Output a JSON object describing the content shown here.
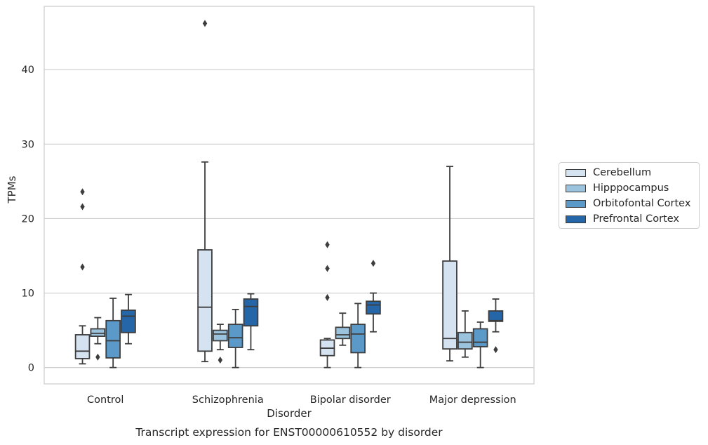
{
  "chart_data": {
    "type": "box",
    "title": "",
    "caption": "Transcript expression for ENST00000610552 by disorder",
    "xlabel": "Disorder",
    "ylabel": "TPMs",
    "ylim": [
      -2.2,
      48.5
    ],
    "yticks": [
      0,
      10,
      20,
      30,
      40
    ],
    "grid": "horizontal",
    "legend_position": "right",
    "categories": [
      "Control",
      "Schizophrenia",
      "Bipolar disorder",
      "Major depression"
    ],
    "series": [
      {
        "name": "Cerebellum",
        "color": "#d5e2f0",
        "boxes": [
          {
            "whisker_low": 0.5,
            "q1": 1.2,
            "median": 2.2,
            "q3": 4.4,
            "whisker_high": 5.6,
            "outliers": [
              13.5,
              21.6,
              23.6
            ]
          },
          {
            "whisker_low": 0.8,
            "q1": 2.2,
            "median": 8.1,
            "q3": 15.8,
            "whisker_high": 27.6,
            "outliers": [
              46.2
            ]
          },
          {
            "whisker_low": 0.0,
            "q1": 1.6,
            "median": 2.6,
            "q3": 3.7,
            "whisker_high": 3.9,
            "outliers": [
              9.4,
              13.3,
              16.5
            ]
          },
          {
            "whisker_low": 0.9,
            "q1": 2.5,
            "median": 3.9,
            "q3": 14.3,
            "whisker_high": 27.0,
            "outliers": []
          }
        ]
      },
      {
        "name": "Hipppocampus",
        "color": "#9cc3de",
        "boxes": [
          {
            "whisker_low": 3.2,
            "q1": 4.2,
            "median": 4.6,
            "q3": 5.2,
            "whisker_high": 6.7,
            "outliers": [
              1.4
            ]
          },
          {
            "whisker_low": 2.4,
            "q1": 3.6,
            "median": 4.5,
            "q3": 5.0,
            "whisker_high": 5.8,
            "outliers": [
              1.0
            ]
          },
          {
            "whisker_low": 3.0,
            "q1": 3.9,
            "median": 4.4,
            "q3": 5.4,
            "whisker_high": 7.3,
            "outliers": []
          },
          {
            "whisker_low": 1.4,
            "q1": 2.5,
            "median": 3.4,
            "q3": 4.7,
            "whisker_high": 7.6,
            "outliers": []
          }
        ]
      },
      {
        "name": "Orbitofontal Cortex",
        "color": "#5b9ac8",
        "boxes": [
          {
            "whisker_low": 0.0,
            "q1": 1.3,
            "median": 3.6,
            "q3": 6.3,
            "whisker_high": 9.3,
            "outliers": []
          },
          {
            "whisker_low": 0.0,
            "q1": 2.7,
            "median": 4.0,
            "q3": 5.8,
            "whisker_high": 7.8,
            "outliers": []
          },
          {
            "whisker_low": 0.0,
            "q1": 2.0,
            "median": 4.5,
            "q3": 5.8,
            "whisker_high": 8.6,
            "outliers": []
          },
          {
            "whisker_low": 0.0,
            "q1": 2.8,
            "median": 3.4,
            "q3": 5.2,
            "whisker_high": 6.1,
            "outliers": []
          }
        ]
      },
      {
        "name": "Prefrontal Cortex",
        "color": "#2566a8",
        "boxes": [
          {
            "whisker_low": 3.2,
            "q1": 4.7,
            "median": 6.9,
            "q3": 7.7,
            "whisker_high": 9.8,
            "outliers": []
          },
          {
            "whisker_low": 2.4,
            "q1": 5.6,
            "median": 8.2,
            "q3": 9.2,
            "whisker_high": 9.9,
            "outliers": []
          },
          {
            "whisker_low": 4.8,
            "q1": 7.2,
            "median": 8.4,
            "q3": 8.9,
            "whisker_high": 10.0,
            "outliers": [
              14.0
            ]
          },
          {
            "whisker_low": 4.8,
            "q1": 6.2,
            "median": 6.3,
            "q3": 7.6,
            "whisker_high": 9.2,
            "outliers": [
              2.4
            ]
          }
        ]
      }
    ]
  }
}
